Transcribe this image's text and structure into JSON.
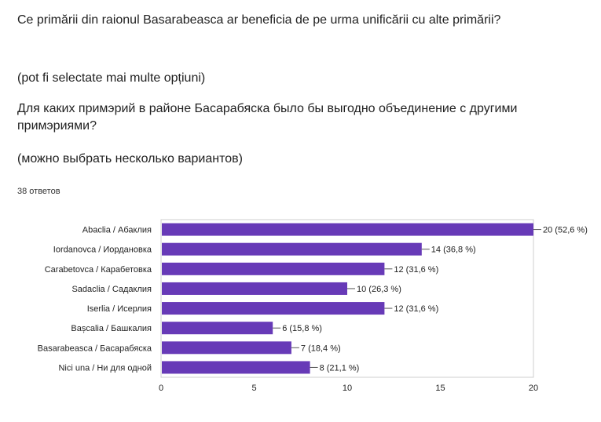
{
  "question": {
    "ro": "Ce primării din raionul Basarabeasca ar beneficia de pe urma unificării cu alte primării?",
    "ro_note": "(pot fi selectate mai multe opțiuni)",
    "ru": "Для каких примэрий в районе Басарабяска было бы выгодно объединение с другими примэриями?",
    "ru_note": "(можно выбрать несколько вариантов)"
  },
  "response_count": "38 ответов",
  "chart_data": {
    "type": "bar",
    "orientation": "horizontal",
    "categories": [
      "Abaclia / Абаклия",
      "Iordanovca / Иордановка",
      "Carabetovca / Карабетовка",
      "Sadaclia / Садаклия",
      "Iserlia / Исерлия",
      "Bașcalia / Башкалия",
      "Basarabeasca / Басарабяска",
      "Nici una / Ни для одной"
    ],
    "values": [
      20,
      14,
      12,
      10,
      12,
      6,
      7,
      8
    ],
    "data_labels": [
      "20 (52,6 %)",
      "14 (36,8 %)",
      "12 (31,6 %)",
      "10 (26,3 %)",
      "12 (31,6 %)",
      "6 (15,8 %)",
      "7 (18,4 %)",
      "8 (21,1 %)"
    ],
    "xlim": [
      0,
      20
    ],
    "xticks": [
      "0",
      "5",
      "10",
      "15",
      "20"
    ],
    "bar_color": "#673ab7",
    "grid": false
  }
}
